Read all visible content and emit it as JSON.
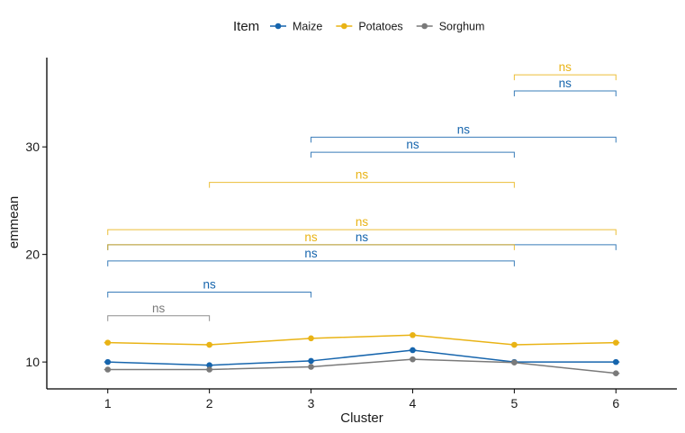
{
  "chart_data": {
    "type": "line",
    "title": "",
    "xlabel": "Cluster",
    "ylabel": "emmean",
    "x": [
      1,
      2,
      3,
      4,
      5,
      6
    ],
    "xlim": [
      0.4,
      6.6
    ],
    "ylim": [
      7.5,
      38.3
    ],
    "yticks": [
      10,
      20,
      30
    ],
    "grid": false,
    "legend": {
      "title": "Item",
      "placement": "top"
    },
    "series": [
      {
        "name": "Maize",
        "color": "#1665ad",
        "values": [
          10.0,
          9.7,
          10.1,
          11.1,
          10.0,
          10.0
        ]
      },
      {
        "name": "Potatoes",
        "color": "#e9b315",
        "values": [
          11.8,
          11.6,
          12.2,
          12.5,
          11.6,
          11.8
        ]
      },
      {
        "name": "Sorghum",
        "color": "#7a7a7a",
        "values": [
          9.3,
          9.3,
          9.55,
          10.25,
          9.95,
          8.95
        ]
      }
    ],
    "annotations": [
      {
        "series": "Sorghum",
        "from": 1,
        "to": 2,
        "y": 14.3,
        "label": "ns"
      },
      {
        "series": "Maize",
        "from": 1,
        "to": 3,
        "y": 16.5,
        "label": "ns"
      },
      {
        "series": "Maize",
        "from": 1,
        "to": 5,
        "y": 19.4,
        "label": "ns"
      },
      {
        "series": "Maize",
        "from": 1,
        "to": 6,
        "y": 20.9,
        "label": "ns"
      },
      {
        "series": "Potatoes",
        "from": 1,
        "to": 5,
        "y": 20.9,
        "label": "ns"
      },
      {
        "series": "Potatoes",
        "from": 1,
        "to": 6,
        "y": 22.3,
        "label": "ns"
      },
      {
        "series": "Potatoes",
        "from": 2,
        "to": 5,
        "y": 26.7,
        "label": "ns"
      },
      {
        "series": "Maize",
        "from": 3,
        "to": 5,
        "y": 29.5,
        "label": "ns"
      },
      {
        "series": "Maize",
        "from": 3,
        "to": 6,
        "y": 30.9,
        "label": "ns"
      },
      {
        "series": "Maize",
        "from": 5,
        "to": 6,
        "y": 35.2,
        "label": "ns"
      },
      {
        "series": "Potatoes",
        "from": 5,
        "to": 6,
        "y": 36.7,
        "label": "ns"
      }
    ]
  }
}
